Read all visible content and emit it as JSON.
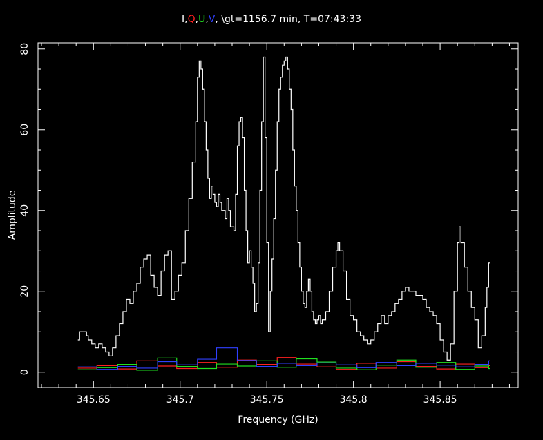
{
  "chart_data": {
    "type": "line",
    "title_parts": [
      {
        "text": "I",
        "color": "#ffffff"
      },
      {
        "text": ",",
        "color": "#ffffff"
      },
      {
        "text": "Q",
        "color": "#ff2020"
      },
      {
        "text": ",",
        "color": "#ffffff"
      },
      {
        "text": "U",
        "color": "#20e020"
      },
      {
        "text": ",",
        "color": "#ffffff"
      },
      {
        "text": "V",
        "color": "#3040ff"
      },
      {
        "text": ", \\gt=1156.7 min, T=07:43:33",
        "color": "#ffffff"
      }
    ],
    "xlabel": "Frequency (GHz)",
    "ylabel": "Amplitude",
    "xlim": [
      345.618,
      345.895
    ],
    "ylim": [
      -3.8,
      81.5
    ],
    "xticks": [
      345.65,
      345.7,
      345.75,
      345.8,
      345.85
    ],
    "xtick_labels": [
      "345.65",
      "345.7",
      "345.75",
      "345.8",
      "345.85"
    ],
    "yticks": [
      0,
      20,
      40,
      60,
      80
    ],
    "ytick_labels": [
      "0",
      "20",
      "40",
      "60",
      "80"
    ],
    "grid": false,
    "legend": "none",
    "series": [
      {
        "name": "I",
        "color": "#ffffff",
        "points": [
          [
            345.641,
            8
          ],
          [
            345.642,
            10
          ],
          [
            345.644,
            10
          ],
          [
            345.646,
            9
          ],
          [
            345.647,
            8
          ],
          [
            345.649,
            7
          ],
          [
            345.651,
            6
          ],
          [
            345.653,
            7
          ],
          [
            345.655,
            6
          ],
          [
            345.657,
            5
          ],
          [
            345.659,
            4
          ],
          [
            345.661,
            6
          ],
          [
            345.663,
            9
          ],
          [
            345.665,
            12
          ],
          [
            345.667,
            15
          ],
          [
            345.669,
            18
          ],
          [
            345.671,
            17
          ],
          [
            345.673,
            20
          ],
          [
            345.675,
            22
          ],
          [
            345.677,
            26
          ],
          [
            345.679,
            28
          ],
          [
            345.681,
            29
          ],
          [
            345.683,
            24
          ],
          [
            345.685,
            21
          ],
          [
            345.687,
            19
          ],
          [
            345.689,
            25
          ],
          [
            345.691,
            29
          ],
          [
            345.693,
            30
          ],
          [
            345.695,
            18
          ],
          [
            345.697,
            20
          ],
          [
            345.699,
            24
          ],
          [
            345.701,
            27
          ],
          [
            345.703,
            35
          ],
          [
            345.705,
            43
          ],
          [
            345.707,
            52
          ],
          [
            345.709,
            62
          ],
          [
            345.71,
            73
          ],
          [
            345.711,
            77
          ],
          [
            345.712,
            75
          ],
          [
            345.713,
            70
          ],
          [
            345.714,
            62
          ],
          [
            345.715,
            55
          ],
          [
            345.716,
            48
          ],
          [
            345.717,
            43
          ],
          [
            345.718,
            46
          ],
          [
            345.719,
            44
          ],
          [
            345.72,
            42
          ],
          [
            345.721,
            41
          ],
          [
            345.722,
            44
          ],
          [
            345.723,
            42
          ],
          [
            345.724,
            40
          ],
          [
            345.726,
            38
          ],
          [
            345.727,
            43
          ],
          [
            345.728,
            40
          ],
          [
            345.729,
            36
          ],
          [
            345.731,
            35
          ],
          [
            345.732,
            44
          ],
          [
            345.733,
            56
          ],
          [
            345.734,
            62
          ],
          [
            345.735,
            63
          ],
          [
            345.736,
            58
          ],
          [
            345.737,
            45
          ],
          [
            345.738,
            35
          ],
          [
            345.739,
            27
          ],
          [
            345.74,
            30
          ],
          [
            345.741,
            26
          ],
          [
            345.742,
            22
          ],
          [
            345.743,
            15
          ],
          [
            345.744,
            17
          ],
          [
            345.745,
            27
          ],
          [
            345.746,
            45
          ],
          [
            345.747,
            62
          ],
          [
            345.748,
            78
          ],
          [
            345.749,
            58
          ],
          [
            345.75,
            32
          ],
          [
            345.751,
            10
          ],
          [
            345.752,
            20
          ],
          [
            345.753,
            28
          ],
          [
            345.754,
            38
          ],
          [
            345.755,
            50
          ],
          [
            345.756,
            62
          ],
          [
            345.757,
            70
          ],
          [
            345.758,
            73
          ],
          [
            345.759,
            76
          ],
          [
            345.76,
            77
          ],
          [
            345.761,
            78
          ],
          [
            345.762,
            75
          ],
          [
            345.763,
            70
          ],
          [
            345.764,
            65
          ],
          [
            345.765,
            55
          ],
          [
            345.766,
            46
          ],
          [
            345.767,
            40
          ],
          [
            345.768,
            32
          ],
          [
            345.769,
            26
          ],
          [
            345.77,
            20
          ],
          [
            345.771,
            17
          ],
          [
            345.772,
            16
          ],
          [
            345.773,
            20
          ],
          [
            345.774,
            23
          ],
          [
            345.775,
            20
          ],
          [
            345.776,
            15
          ],
          [
            345.777,
            13
          ],
          [
            345.778,
            12
          ],
          [
            345.779,
            13
          ],
          [
            345.78,
            14
          ],
          [
            345.781,
            12
          ],
          [
            345.782,
            13
          ],
          [
            345.784,
            15
          ],
          [
            345.786,
            20
          ],
          [
            345.788,
            26
          ],
          [
            345.79,
            30
          ],
          [
            345.791,
            32
          ],
          [
            345.792,
            30
          ],
          [
            345.794,
            25
          ],
          [
            345.796,
            18
          ],
          [
            345.798,
            14
          ],
          [
            345.8,
            13
          ],
          [
            345.802,
            10
          ],
          [
            345.804,
            9
          ],
          [
            345.806,
            8
          ],
          [
            345.808,
            7
          ],
          [
            345.81,
            8
          ],
          [
            345.812,
            10
          ],
          [
            345.814,
            12
          ],
          [
            345.816,
            14
          ],
          [
            345.818,
            12
          ],
          [
            345.82,
            14
          ],
          [
            345.822,
            15
          ],
          [
            345.824,
            17
          ],
          [
            345.826,
            18
          ],
          [
            345.828,
            20
          ],
          [
            345.83,
            21
          ],
          [
            345.832,
            20
          ],
          [
            345.834,
            20
          ],
          [
            345.836,
            19
          ],
          [
            345.838,
            19
          ],
          [
            345.84,
            18
          ],
          [
            345.842,
            16
          ],
          [
            345.844,
            15
          ],
          [
            345.846,
            14
          ],
          [
            345.848,
            12
          ],
          [
            345.85,
            8
          ],
          [
            345.852,
            5
          ],
          [
            345.854,
            3
          ],
          [
            345.856,
            7
          ],
          [
            345.858,
            20
          ],
          [
            345.86,
            32
          ],
          [
            345.861,
            36
          ],
          [
            345.862,
            32
          ],
          [
            345.864,
            26
          ],
          [
            345.866,
            20
          ],
          [
            345.868,
            16
          ],
          [
            345.87,
            13
          ],
          [
            345.872,
            6
          ],
          [
            345.874,
            9
          ],
          [
            345.876,
            16
          ],
          [
            345.877,
            21
          ],
          [
            345.878,
            27
          ]
        ]
      },
      {
        "name": "Q",
        "color": "#ff2020",
        "points": [
          [
            345.641,
            1.0
          ],
          [
            345.652,
            1.6
          ],
          [
            345.664,
            0.8
          ],
          [
            345.675,
            2.8
          ],
          [
            345.687,
            1.5
          ],
          [
            345.698,
            0.9
          ],
          [
            345.71,
            2.4
          ],
          [
            345.721,
            1.2
          ],
          [
            345.733,
            3.0
          ],
          [
            345.744,
            1.9
          ],
          [
            345.756,
            3.6
          ],
          [
            345.767,
            2.0
          ],
          [
            345.779,
            1.3
          ],
          [
            345.79,
            0.7
          ],
          [
            345.802,
            2.2
          ],
          [
            345.813,
            1.0
          ],
          [
            345.825,
            2.6
          ],
          [
            345.836,
            1.4
          ],
          [
            345.848,
            0.8
          ],
          [
            345.859,
            2.0
          ],
          [
            345.87,
            1.1
          ],
          [
            345.878,
            1.6
          ]
        ]
      },
      {
        "name": "U",
        "color": "#20e020",
        "points": [
          [
            345.641,
            0.6
          ],
          [
            345.652,
            1.1
          ],
          [
            345.664,
            1.9
          ],
          [
            345.675,
            0.5
          ],
          [
            345.687,
            3.5
          ],
          [
            345.698,
            1.4
          ],
          [
            345.71,
            0.9
          ],
          [
            345.721,
            2.0
          ],
          [
            345.733,
            1.5
          ],
          [
            345.744,
            2.8
          ],
          [
            345.756,
            1.2
          ],
          [
            345.767,
            3.3
          ],
          [
            345.779,
            2.5
          ],
          [
            345.79,
            1.0
          ],
          [
            345.802,
            0.6
          ],
          [
            345.813,
            1.7
          ],
          [
            345.825,
            3.0
          ],
          [
            345.836,
            1.2
          ],
          [
            345.848,
            2.4
          ],
          [
            345.859,
            0.7
          ],
          [
            345.87,
            1.5
          ],
          [
            345.878,
            0.9
          ]
        ]
      },
      {
        "name": "V",
        "color": "#3040ff",
        "points": [
          [
            345.641,
            1.3
          ],
          [
            345.652,
            0.7
          ],
          [
            345.664,
            1.4
          ],
          [
            345.675,
            1.0
          ],
          [
            345.687,
            2.6
          ],
          [
            345.698,
            1.8
          ],
          [
            345.71,
            3.2
          ],
          [
            345.721,
            6.0
          ],
          [
            345.733,
            2.9
          ],
          [
            345.744,
            1.4
          ],
          [
            345.756,
            2.2
          ],
          [
            345.767,
            1.6
          ],
          [
            345.779,
            2.3
          ],
          [
            345.79,
            1.8
          ],
          [
            345.802,
            1.1
          ],
          [
            345.813,
            2.4
          ],
          [
            345.825,
            1.6
          ],
          [
            345.836,
            2.2
          ],
          [
            345.848,
            1.7
          ],
          [
            345.859,
            1.3
          ],
          [
            345.87,
            1.9
          ],
          [
            345.878,
            2.8
          ]
        ]
      }
    ]
  }
}
